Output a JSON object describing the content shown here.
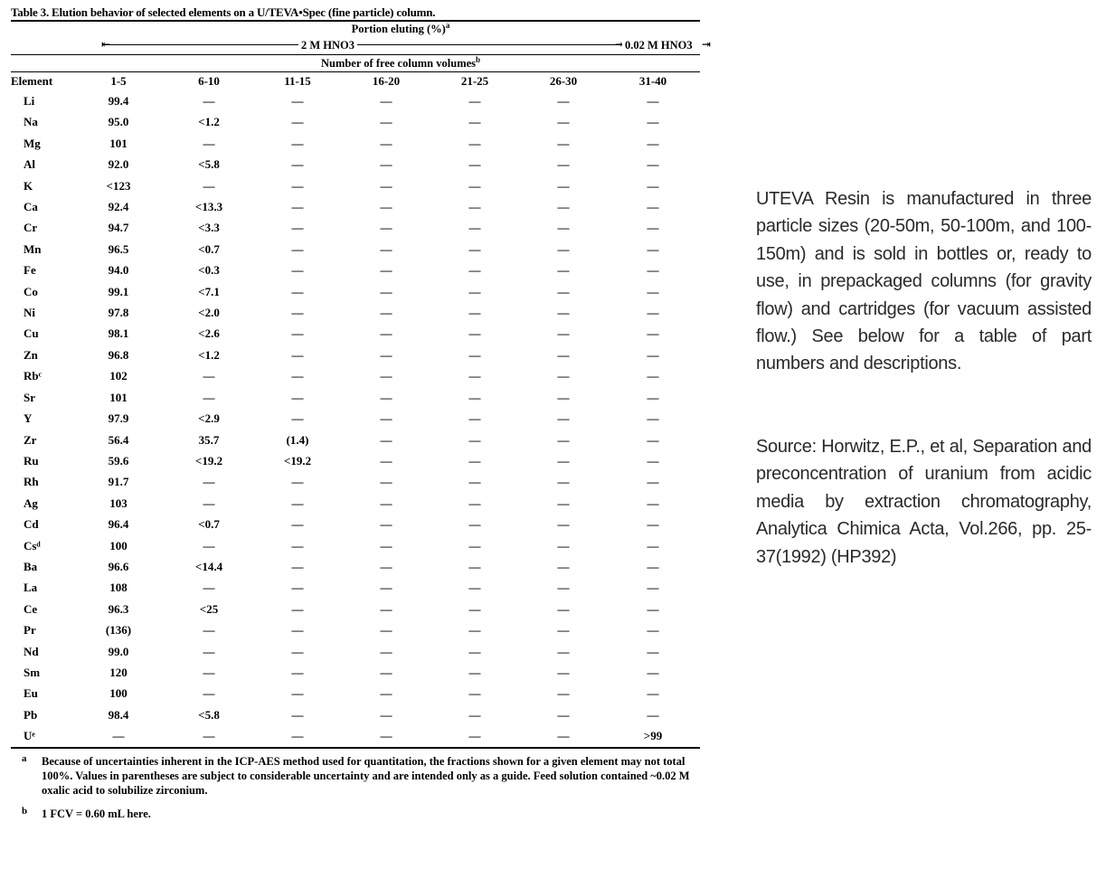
{
  "table": {
    "title": "Table  3.  Elution behavior of selected elements on a U/TEVA•Spec (fine particle) column.",
    "portion_label": "Portion eluting (%)",
    "portion_sup": "a",
    "eluent1": "2 M HNO3",
    "eluent2": "0.02 M HNO3",
    "fcv_label": "Number of free column volumes",
    "fcv_sup": "b",
    "columns": [
      "Element",
      "1-5",
      "6-10",
      "11-15",
      "16-20",
      "21-25",
      "26-30",
      "31-40"
    ],
    "rows": [
      [
        "Li",
        "99.4",
        "—",
        "—",
        "—",
        "—",
        "—",
        "—"
      ],
      [
        "Na",
        "95.0",
        "<1.2",
        "—",
        "—",
        "—",
        "—",
        "—"
      ],
      [
        "Mg",
        "101",
        "—",
        "—",
        "—",
        "—",
        "—",
        "—"
      ],
      [
        "Al",
        "92.0",
        "<5.8",
        "—",
        "—",
        "—",
        "—",
        "—"
      ],
      [
        "K",
        "<123",
        "—",
        "—",
        "—",
        "—",
        "—",
        "—"
      ],
      [
        "Ca",
        "92.4",
        "<13.3",
        "—",
        "—",
        "—",
        "—",
        "—"
      ],
      [
        "Cr",
        "94.7",
        "<3.3",
        "—",
        "—",
        "—",
        "—",
        "—"
      ],
      [
        "Mn",
        "96.5",
        "<0.7",
        "—",
        "—",
        "—",
        "—",
        "—"
      ],
      [
        "Fe",
        "94.0",
        "<0.3",
        "—",
        "—",
        "—",
        "—",
        "—"
      ],
      [
        "Co",
        "99.1",
        "<7.1",
        "—",
        "—",
        "—",
        "—",
        "—"
      ],
      [
        "Ni",
        "97.8",
        "<2.0",
        "—",
        "—",
        "—",
        "—",
        "—"
      ],
      [
        "Cu",
        "98.1",
        "<2.6",
        "—",
        "—",
        "—",
        "—",
        "—"
      ],
      [
        "Zn",
        "96.8",
        "<1.2",
        "—",
        "—",
        "—",
        "—",
        "—"
      ],
      [
        "Rbᶜ",
        "102",
        "—",
        "—",
        "—",
        "—",
        "—",
        "—"
      ],
      [
        "Sr",
        "101",
        "—",
        "—",
        "—",
        "—",
        "—",
        "—"
      ],
      [
        "Y",
        "97.9",
        "<2.9",
        "—",
        "—",
        "—",
        "—",
        "—"
      ],
      [
        "Zr",
        "56.4",
        "35.7",
        "(1.4)",
        "—",
        "—",
        "—",
        "—"
      ],
      [
        "Ru",
        "59.6",
        "<19.2",
        "<19.2",
        "—",
        "—",
        "—",
        "—"
      ],
      [
        "Rh",
        "91.7",
        "—",
        "—",
        "—",
        "—",
        "—",
        "—"
      ],
      [
        "Ag",
        "103",
        "—",
        "—",
        "—",
        "—",
        "—",
        "—"
      ],
      [
        "Cd",
        "96.4",
        "<0.7",
        "—",
        "—",
        "—",
        "—",
        "—"
      ],
      [
        "Csᵈ",
        "100",
        "—",
        "—",
        "—",
        "—",
        "—",
        "—"
      ],
      [
        "Ba",
        "96.6",
        "<14.4",
        "—",
        "—",
        "—",
        "—",
        "—"
      ],
      [
        "La",
        "108",
        "—",
        "—",
        "—",
        "—",
        "—",
        "—"
      ],
      [
        "Ce",
        "96.3",
        "<25",
        "—",
        "—",
        "—",
        "—",
        "—"
      ],
      [
        "Pr",
        "(136)",
        "—",
        "—",
        "—",
        "—",
        "—",
        "—"
      ],
      [
        "Nd",
        "99.0",
        "—",
        "—",
        "—",
        "—",
        "—",
        "—"
      ],
      [
        "Sm",
        "120",
        "—",
        "—",
        "—",
        "—",
        "—",
        "—"
      ],
      [
        "Eu",
        "100",
        "—",
        "—",
        "—",
        "—",
        "—",
        "—"
      ],
      [
        "Pb",
        "98.4",
        "<5.8",
        "—",
        "—",
        "—",
        "—",
        "—"
      ],
      [
        "Uᵉ",
        "—",
        "—",
        "—",
        "—",
        "—",
        "—",
        ">99"
      ]
    ],
    "footnote_a_mark": "a",
    "footnote_a": "Because of uncertainties inherent in the ICP-AES method used for quantitation, the fractions shown for a given element may not total 100%.  Values in parentheses are subject to considerable uncertainty and are intended only as a guide.  Feed solution contained ~0.02 M oxalic acid to solubilize zirconium.",
    "footnote_b_mark": "b",
    "footnote_b": "1 FCV = 0.60 mL here."
  },
  "side": {
    "paragraph1": "UTEVA Resin is manufactured in three particle sizes (20-50m, 50-100m, and 100-150m) and is sold in bottles or, ready to use, in prepackaged columns (for gravity flow) and cartridges (for vacuum assisted flow.) See below for a table of part numbers and descriptions.",
    "paragraph2": "Source: Horwitz, E.P., et al, Separation and preconcentration of uranium from acidic media by extraction chromatography, Analytica Chimica Acta, Vol.266, pp. 25-37(1992) (HP392)"
  }
}
